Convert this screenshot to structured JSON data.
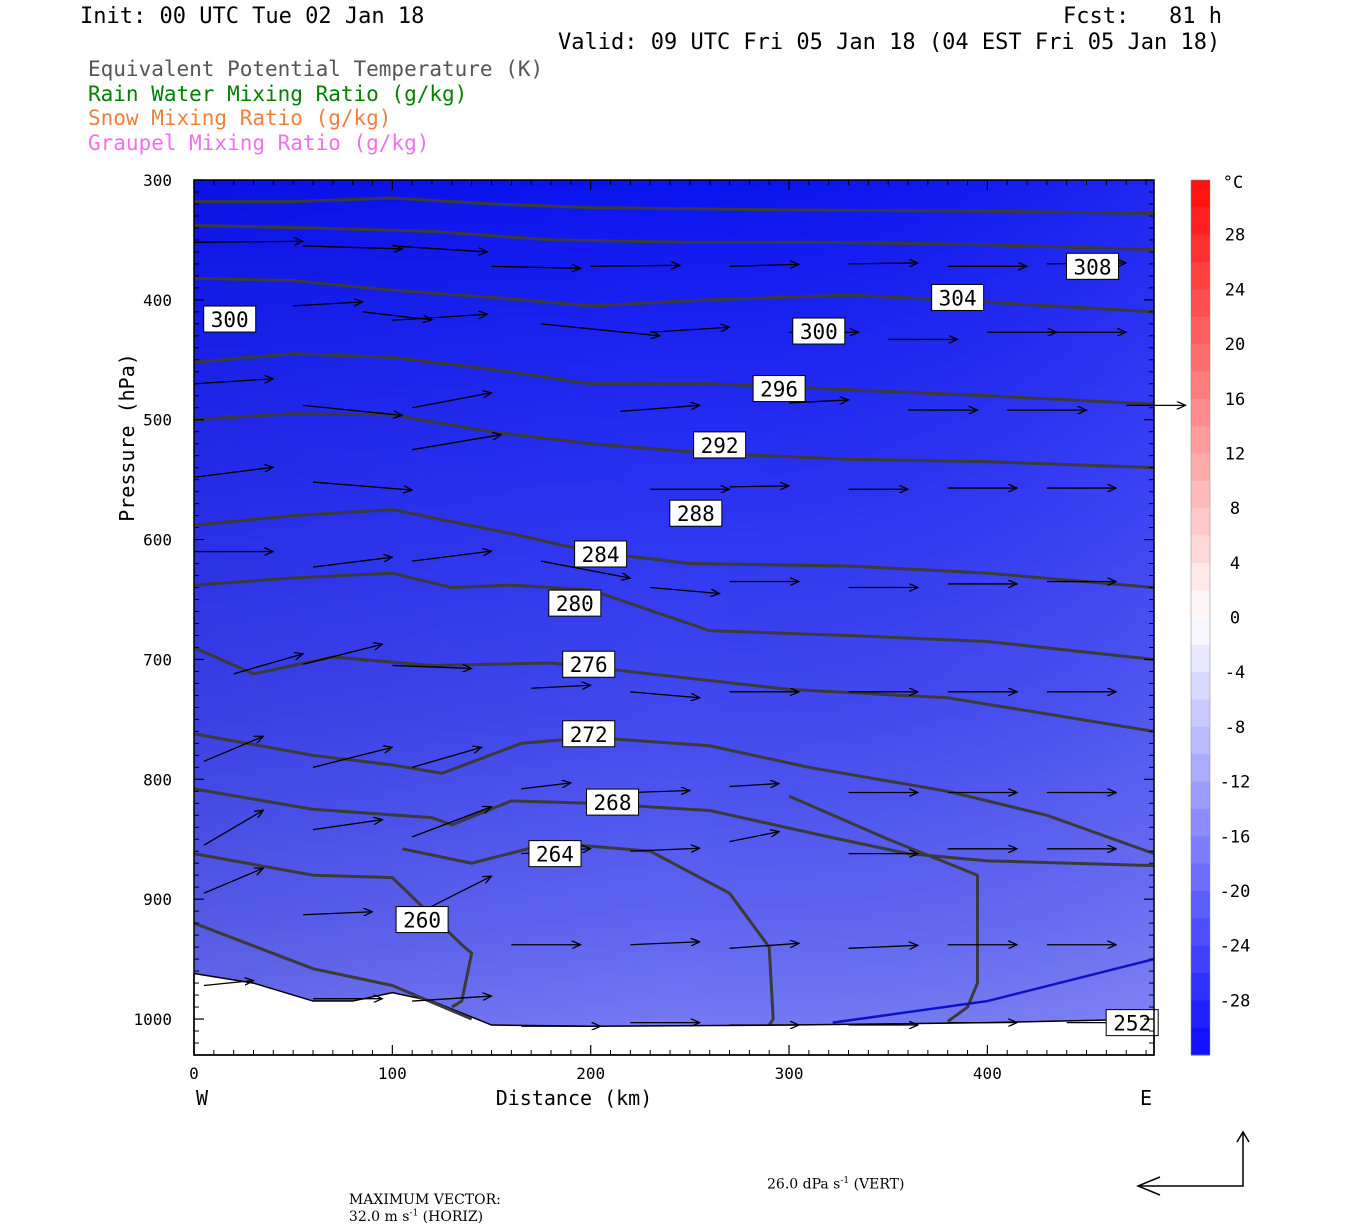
{
  "header": {
    "init": "Init: 00 UTC Tue 02 Jan 18",
    "fcst": "Fcst:   81 h",
    "valid": "Valid: 09 UTC Fri 05 Jan 18 (04 EST Fri 05 Jan 18)"
  },
  "legend": [
    {
      "label": "Equivalent Potential Temperature (K)",
      "color": "#555555"
    },
    {
      "label": "Rain Water Mixing Ratio (g/kg)",
      "color": "#008000"
    },
    {
      "label": "Snow Mixing Ratio (g/kg)",
      "color": "#f08040"
    },
    {
      "label": "Graupel Mixing Ratio (g/kg)",
      "color": "#f070f0"
    }
  ],
  "chart_data": {
    "type": "heatmap",
    "xlabel": "Distance (km)",
    "ylabel": "Pressure (hPa)",
    "xlim": [
      0,
      484
    ],
    "ylim": [
      1030,
      300
    ],
    "x_ticks": [
      0,
      100,
      200,
      300,
      400
    ],
    "y_ticks": [
      300,
      400,
      500,
      600,
      700,
      800,
      900,
      1000
    ],
    "x_end_labels": {
      "left": "W",
      "right": "E"
    },
    "colorbar": {
      "unit": "°C",
      "ticks": [
        28,
        24,
        20,
        16,
        12,
        8,
        4,
        0,
        -4,
        -8,
        -12,
        -16,
        -20,
        -24,
        -28
      ],
      "range": [
        -32,
        32
      ]
    },
    "contour_labels": [
      {
        "label": "308",
        "x": 453,
        "p": 372
      },
      {
        "label": "304",
        "x": 385,
        "p": 398
      },
      {
        "label": "300",
        "x": 18,
        "p": 416
      },
      {
        "label": "300",
        "x": 315,
        "p": 426
      },
      {
        "label": "296",
        "x": 295,
        "p": 474
      },
      {
        "label": "292",
        "x": 265,
        "p": 521
      },
      {
        "label": "288",
        "x": 253,
        "p": 578
      },
      {
        "label": "284",
        "x": 205,
        "p": 612
      },
      {
        "label": "280",
        "x": 192,
        "p": 653
      },
      {
        "label": "276",
        "x": 199,
        "p": 704
      },
      {
        "label": "272",
        "x": 199,
        "p": 762
      },
      {
        "label": "268",
        "x": 211,
        "p": 819
      },
      {
        "label": "264",
        "x": 182,
        "p": 862
      },
      {
        "label": "260",
        "x": 115,
        "p": 917
      },
      {
        "label": "252",
        "x": 473,
        "p": 1003
      }
    ],
    "contours": [
      {
        "theta": 308,
        "points": [
          [
            0,
            318
          ],
          [
            50,
            318
          ],
          [
            100,
            315
          ],
          [
            150,
            320
          ],
          [
            200,
            323
          ],
          [
            300,
            325
          ],
          [
            400,
            326
          ],
          [
            484,
            328
          ]
        ]
      },
      {
        "theta": 304,
        "points": [
          [
            0,
            338
          ],
          [
            60,
            340
          ],
          [
            120,
            343
          ],
          [
            180,
            350
          ],
          [
            250,
            352
          ],
          [
            320,
            352
          ],
          [
            400,
            354
          ],
          [
            484,
            358
          ]
        ]
      },
      {
        "theta": 304,
        "points": [
          [
            0,
            382
          ],
          [
            50,
            384
          ],
          [
            100,
            392
          ],
          [
            150,
            398
          ],
          [
            200,
            405
          ],
          [
            260,
            400
          ],
          [
            330,
            396
          ],
          [
            400,
            402
          ],
          [
            484,
            410
          ]
        ]
      },
      {
        "theta": 300,
        "points": [
          [
            0,
            452
          ],
          [
            50,
            445
          ],
          [
            100,
            448
          ],
          [
            150,
            458
          ],
          [
            200,
            470
          ],
          [
            260,
            470
          ],
          [
            330,
            475
          ],
          [
            400,
            480
          ],
          [
            484,
            487
          ]
        ]
      },
      {
        "theta": 296,
        "points": [
          [
            0,
            500
          ],
          [
            50,
            495
          ],
          [
            100,
            496
          ],
          [
            150,
            510
          ],
          [
            200,
            520
          ],
          [
            260,
            528
          ],
          [
            330,
            533
          ],
          [
            400,
            535
          ],
          [
            484,
            540
          ]
        ]
      },
      {
        "theta": 292,
        "points": [
          [
            0,
            588
          ],
          [
            50,
            580
          ],
          [
            100,
            575
          ],
          [
            130,
            585
          ],
          [
            160,
            595
          ],
          [
            200,
            610
          ],
          [
            250,
            620
          ],
          [
            330,
            622
          ],
          [
            400,
            628
          ],
          [
            484,
            640
          ]
        ]
      },
      {
        "theta": 288,
        "points": [
          [
            0,
            638
          ],
          [
            50,
            632
          ],
          [
            100,
            628
          ],
          [
            130,
            640
          ],
          [
            160,
            638
          ],
          [
            200,
            642
          ],
          [
            260,
            676
          ],
          [
            330,
            680
          ],
          [
            400,
            685
          ],
          [
            484,
            700
          ]
        ]
      },
      {
        "theta": 284,
        "points": [
          [
            0,
            690
          ],
          [
            30,
            712
          ],
          [
            70,
            698
          ],
          [
            120,
            705
          ],
          [
            180,
            703
          ],
          [
            230,
            712
          ],
          [
            300,
            725
          ],
          [
            380,
            732
          ],
          [
            484,
            760
          ]
        ]
      },
      {
        "theta": 280,
        "points": [
          [
            0,
            762
          ],
          [
            60,
            780
          ],
          [
            100,
            788
          ],
          [
            125,
            795
          ],
          [
            165,
            770
          ],
          [
            200,
            765
          ],
          [
            260,
            772
          ],
          [
            310,
            790
          ],
          [
            380,
            810
          ],
          [
            430,
            830
          ],
          [
            484,
            862
          ]
        ]
      },
      {
        "theta": 276,
        "points": [
          [
            0,
            808
          ],
          [
            60,
            825
          ],
          [
            120,
            832
          ],
          [
            130,
            838
          ],
          [
            160,
            818
          ],
          [
            200,
            820
          ],
          [
            260,
            826
          ],
          [
            320,
            848
          ],
          [
            360,
            862
          ],
          [
            400,
            868
          ],
          [
            484,
            872
          ]
        ]
      },
      {
        "theta": 272,
        "points": [
          [
            0,
            862
          ],
          [
            60,
            880
          ],
          [
            100,
            882
          ],
          [
            135,
            938
          ],
          [
            140,
            945
          ],
          [
            135,
            985
          ],
          [
            130,
            990
          ]
        ]
      },
      {
        "theta": 268,
        "points": [
          [
            0,
            920
          ],
          [
            60,
            958
          ],
          [
            100,
            972
          ],
          [
            140,
            1000
          ]
        ]
      },
      {
        "theta": 264,
        "points": [
          [
            105,
            858
          ],
          [
            140,
            870
          ],
          [
            180,
            853
          ],
          [
            230,
            860
          ],
          [
            270,
            895
          ],
          [
            290,
            940
          ],
          [
            292,
            1000
          ],
          [
            290,
            1005
          ]
        ]
      },
      {
        "theta": 260,
        "points": [
          [
            300,
            814
          ],
          [
            350,
            850
          ],
          [
            395,
            880
          ],
          [
            395,
            970
          ],
          [
            390,
            990
          ],
          [
            380,
            1002
          ]
        ]
      }
    ],
    "rain_line": [
      [
        322,
        1003
      ],
      [
        400,
        985
      ],
      [
        484,
        950
      ]
    ],
    "surface_terrain": [
      [
        0,
        962
      ],
      [
        30,
        970
      ],
      [
        60,
        985
      ],
      [
        80,
        985
      ],
      [
        100,
        978
      ],
      [
        120,
        985
      ],
      [
        150,
        1005
      ],
      [
        200,
        1006
      ],
      [
        300,
        1005
      ],
      [
        400,
        1003
      ],
      [
        484,
        1000
      ]
    ],
    "vectors": [
      {
        "x": 0,
        "p": 352,
        "u": 55,
        "v": -1
      },
      {
        "x": 55,
        "p": 355,
        "u": 50,
        "v": 3
      },
      {
        "x": 100,
        "p": 355,
        "u": 48,
        "v": 6
      },
      {
        "x": 150,
        "p": 372,
        "u": 45,
        "v": 2
      },
      {
        "x": 200,
        "p": 372,
        "u": 45,
        "v": -1
      },
      {
        "x": 270,
        "p": 372,
        "u": 35,
        "v": -2
      },
      {
        "x": 330,
        "p": 370,
        "u": 35,
        "v": -1
      },
      {
        "x": 380,
        "p": 372,
        "u": 40,
        "v": 0
      },
      {
        "x": 430,
        "p": 370,
        "u": 40,
        "v": -1
      },
      {
        "x": 50,
        "p": 405,
        "u": 35,
        "v": -4
      },
      {
        "x": 85,
        "p": 410,
        "u": 35,
        "v": 8
      },
      {
        "x": 100,
        "p": 417,
        "u": 48,
        "v": -6
      },
      {
        "x": 175,
        "p": 420,
        "u": 60,
        "v": 12
      },
      {
        "x": 230,
        "p": 427,
        "u": 40,
        "v": -5
      },
      {
        "x": 300,
        "p": 427,
        "u": 35,
        "v": 0
      },
      {
        "x": 350,
        "p": 433,
        "u": 35,
        "v": 0
      },
      {
        "x": 400,
        "p": 427,
        "u": 35,
        "v": 0
      },
      {
        "x": 430,
        "p": 427,
        "u": 40,
        "v": 0
      },
      {
        "x": 0,
        "p": 470,
        "u": 40,
        "v": -5
      },
      {
        "x": 55,
        "p": 488,
        "u": 50,
        "v": 10
      },
      {
        "x": 110,
        "p": 490,
        "u": 40,
        "v": -15
      },
      {
        "x": 215,
        "p": 493,
        "u": 40,
        "v": -6
      },
      {
        "x": 300,
        "p": 486,
        "u": 30,
        "v": -3
      },
      {
        "x": 360,
        "p": 492,
        "u": 35,
        "v": 0
      },
      {
        "x": 410,
        "p": 492,
        "u": 40,
        "v": 0
      },
      {
        "x": 470,
        "p": 488,
        "u": 30,
        "v": 0
      },
      {
        "x": 0,
        "p": 548,
        "u": 40,
        "v": -10
      },
      {
        "x": 60,
        "p": 552,
        "u": 50,
        "v": 8
      },
      {
        "x": 110,
        "p": 525,
        "u": 45,
        "v": -15
      },
      {
        "x": 230,
        "p": 558,
        "u": 40,
        "v": 0
      },
      {
        "x": 270,
        "p": 556,
        "u": 30,
        "v": -1
      },
      {
        "x": 330,
        "p": 558,
        "u": 30,
        "v": 0
      },
      {
        "x": 380,
        "p": 557,
        "u": 35,
        "v": 0
      },
      {
        "x": 430,
        "p": 557,
        "u": 35,
        "v": 0
      },
      {
        "x": 0,
        "p": 610,
        "u": 40,
        "v": 0
      },
      {
        "x": 60,
        "p": 623,
        "u": 40,
        "v": -10
      },
      {
        "x": 110,
        "p": 618,
        "u": 40,
        "v": -10
      },
      {
        "x": 175,
        "p": 618,
        "u": 45,
        "v": 17
      },
      {
        "x": 230,
        "p": 640,
        "u": 35,
        "v": 6
      },
      {
        "x": 270,
        "p": 635,
        "u": 35,
        "v": 0
      },
      {
        "x": 330,
        "p": 640,
        "u": 35,
        "v": 0
      },
      {
        "x": 380,
        "p": 637,
        "u": 35,
        "v": 0
      },
      {
        "x": 430,
        "p": 635,
        "u": 35,
        "v": 0
      },
      {
        "x": 20,
        "p": 712,
        "u": 35,
        "v": -20
      },
      {
        "x": 55,
        "p": 704,
        "u": 40,
        "v": -20
      },
      {
        "x": 100,
        "p": 705,
        "u": 40,
        "v": 3
      },
      {
        "x": 170,
        "p": 724,
        "u": 30,
        "v": -3
      },
      {
        "x": 220,
        "p": 727,
        "u": 35,
        "v": 6
      },
      {
        "x": 270,
        "p": 727,
        "u": 35,
        "v": 0
      },
      {
        "x": 330,
        "p": 727,
        "u": 35,
        "v": 0
      },
      {
        "x": 380,
        "p": 727,
        "u": 35,
        "v": 0
      },
      {
        "x": 430,
        "p": 727,
        "u": 35,
        "v": 0
      },
      {
        "x": 5,
        "p": 785,
        "u": 30,
        "v": -25
      },
      {
        "x": 60,
        "p": 790,
        "u": 40,
        "v": -20
      },
      {
        "x": 110,
        "p": 790,
        "u": 35,
        "v": -20
      },
      {
        "x": 165,
        "p": 808,
        "u": 25,
        "v": -6
      },
      {
        "x": 220,
        "p": 811,
        "u": 30,
        "v": -2
      },
      {
        "x": 270,
        "p": 806,
        "u": 25,
        "v": -3
      },
      {
        "x": 330,
        "p": 811,
        "u": 35,
        "v": 0
      },
      {
        "x": 380,
        "p": 811,
        "u": 35,
        "v": 0
      },
      {
        "x": 430,
        "p": 811,
        "u": 35,
        "v": 0
      },
      {
        "x": 5,
        "p": 855,
        "u": 30,
        "v": -35
      },
      {
        "x": 60,
        "p": 842,
        "u": 35,
        "v": -10
      },
      {
        "x": 110,
        "p": 848,
        "u": 40,
        "v": -30
      },
      {
        "x": 165,
        "p": 862,
        "u": 35,
        "v": -5
      },
      {
        "x": 220,
        "p": 860,
        "u": 35,
        "v": -3
      },
      {
        "x": 270,
        "p": 852,
        "u": 25,
        "v": -10
      },
      {
        "x": 330,
        "p": 862,
        "u": 35,
        "v": 0
      },
      {
        "x": 380,
        "p": 858,
        "u": 35,
        "v": 0
      },
      {
        "x": 430,
        "p": 858,
        "u": 35,
        "v": 0
      },
      {
        "x": 5,
        "p": 895,
        "u": 30,
        "v": -25
      },
      {
        "x": 55,
        "p": 913,
        "u": 35,
        "v": -3
      },
      {
        "x": 115,
        "p": 910,
        "u": 35,
        "v": -35
      },
      {
        "x": 160,
        "p": 938,
        "u": 35,
        "v": 0
      },
      {
        "x": 220,
        "p": 938,
        "u": 35,
        "v": -3
      },
      {
        "x": 270,
        "p": 941,
        "u": 35,
        "v": -5
      },
      {
        "x": 330,
        "p": 941,
        "u": 35,
        "v": -3
      },
      {
        "x": 380,
        "p": 938,
        "u": 35,
        "v": 0
      },
      {
        "x": 430,
        "p": 938,
        "u": 35,
        "v": 0
      },
      {
        "x": 5,
        "p": 972,
        "u": 25,
        "v": -5
      },
      {
        "x": 60,
        "p": 983,
        "u": 35,
        "v": 0
      },
      {
        "x": 110,
        "p": 985,
        "u": 40,
        "v": -5
      },
      {
        "x": 165,
        "p": 1006,
        "u": 40,
        "v": 0
      },
      {
        "x": 220,
        "p": 1003,
        "u": 35,
        "v": 0
      },
      {
        "x": 270,
        "p": 1005,
        "u": 35,
        "v": 0
      },
      {
        "x": 330,
        "p": 1005,
        "u": 35,
        "v": 0
      },
      {
        "x": 380,
        "p": 1003,
        "u": 35,
        "v": 0
      },
      {
        "x": 440,
        "p": 1003,
        "u": 30,
        "v": 0
      }
    ]
  },
  "footer": {
    "max_vector_label": "MAXIMUM VECTOR:",
    "horiz": "32.0 m s",
    "horiz_exp": "-1",
    "horiz_tail": " (HORIZ)",
    "vert": "26.0 dPa s",
    "vert_exp": "-1",
    "vert_tail": " (VERT)"
  }
}
